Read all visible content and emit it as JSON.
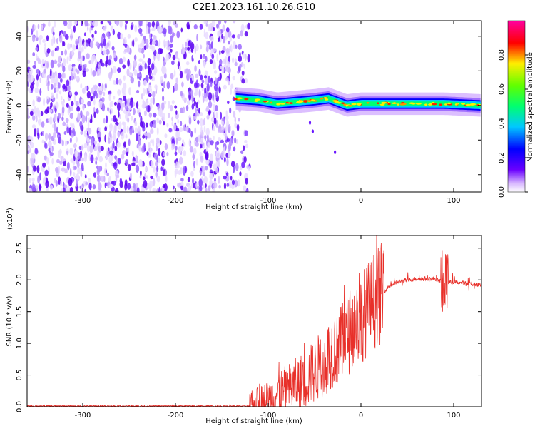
{
  "title": "C2E1.2023.161.10.26.G10",
  "chart_data": [
    {
      "type": "heatmap",
      "xlabel": "Height of straight line (km)",
      "ylabel": "Frequency (Hz)",
      "xlim": [
        -360,
        130
      ],
      "ylim": [
        -50,
        49
      ],
      "x_ticks": [
        -300,
        -200,
        -100,
        0,
        100
      ],
      "x_tick_labels": [
        "-300",
        "-200",
        "-100",
        "0",
        "100"
      ],
      "y_ticks": [
        -40,
        -20,
        0,
        20,
        40
      ],
      "y_tick_labels": [
        "-40",
        "-20",
        "0",
        "20",
        "40"
      ],
      "colorbar": {
        "label": "Normalized spectral amplitude",
        "range": [
          0,
          1
        ],
        "ticks": [
          0.0,
          0.2,
          0.4,
          0.6,
          0.8
        ],
        "tick_labels": [
          "0.0",
          "0.2",
          "0.4",
          "0.6",
          "0.8"
        ],
        "colormap": "rainbow (white-purple-blue-cyan-green-yellow-red-magenta)"
      },
      "features": {
        "noise_region_x": [
          -360,
          -120
        ],
        "signal_track": [
          [
            -135,
            4
          ],
          [
            -110,
            3
          ],
          [
            -90,
            1
          ],
          [
            -70,
            2
          ],
          [
            -50,
            3
          ],
          [
            -35,
            4
          ],
          [
            -25,
            2
          ],
          [
            -15,
            0
          ],
          [
            0,
            1
          ],
          [
            30,
            1
          ],
          [
            60,
            1
          ],
          [
            90,
            1
          ],
          [
            130,
            0
          ]
        ],
        "drift_points": [
          [
            -55,
            -10
          ],
          [
            -52,
            -15
          ],
          [
            -28,
            -27
          ]
        ]
      }
    },
    {
      "type": "line",
      "xlabel": "Height of straight line (km)",
      "ylabel": "SNR (10 * v/v)",
      "scale_label": "(x10",
      "scale_exponent": "4",
      "scale_close": ")",
      "color": "#e8302a",
      "xlim": [
        -360,
        130
      ],
      "ylim": [
        0,
        2.7
      ],
      "x_ticks": [
        -300,
        -200,
        -100,
        0,
        100
      ],
      "x_tick_labels": [
        "-300",
        "-200",
        "-100",
        "0",
        "100"
      ],
      "y_ticks": [
        0.0,
        0.5,
        1.0,
        1.5,
        2.0,
        2.5
      ],
      "y_tick_labels": [
        "0.0",
        "0.5",
        "1.0",
        "1.5",
        "2.0",
        "2.5"
      ],
      "envelope": {
        "x": [
          -360,
          -120,
          -100,
          -80,
          -60,
          -40,
          -30,
          -20,
          -10,
          0,
          10,
          20,
          30,
          40,
          60,
          80,
          90,
          100,
          110,
          130
        ],
        "y": [
          0.01,
          0.01,
          0.12,
          0.28,
          0.42,
          0.7,
          0.9,
          1.0,
          1.25,
          1.4,
          1.6,
          1.75,
          1.9,
          1.97,
          2.02,
          2.02,
          1.95,
          1.97,
          1.95,
          1.92
        ]
      }
    }
  ]
}
